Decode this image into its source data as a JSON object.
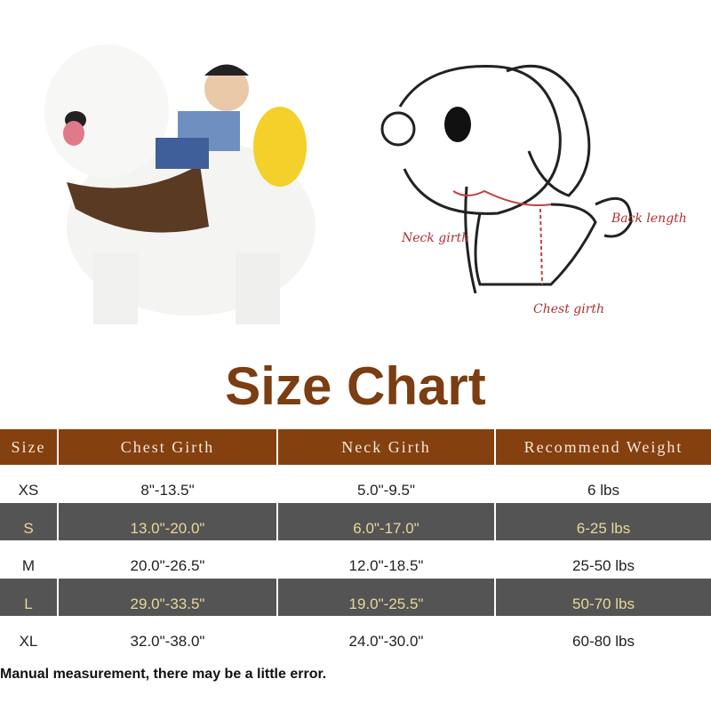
{
  "title": "Size Chart",
  "diagram_labels": {
    "neck": "Neck girth",
    "back": "Back length",
    "chest": "Chest girth"
  },
  "table": {
    "headers": [
      "Size",
      "Chest Girth",
      "Neck Girth",
      "Recommend Weight"
    ],
    "rows": [
      [
        "XS",
        "8\"-13.5\"",
        "5.0\"-9.5\"",
        "6 lbs"
      ],
      [
        "S",
        "13.0\"-20.0\"",
        "6.0\"-17.0\"",
        "6-25 lbs"
      ],
      [
        "M",
        "20.0\"-26.5\"",
        "12.0\"-18.5\"",
        "25-50 lbs"
      ],
      [
        "L",
        "29.0\"-33.5\"",
        "19.0\"-25.5\"",
        "50-70 lbs"
      ],
      [
        "XL",
        "32.0\"-38.0\"",
        "24.0\"-30.0\"",
        "60-80 lbs"
      ]
    ]
  },
  "note": "Manual measurement, there may be a little error.",
  "colors": {
    "header_bg": "#85400f",
    "title": "#7b3d12",
    "stripe_bg": "#545454",
    "stripe_text": "#e8d79a"
  }
}
